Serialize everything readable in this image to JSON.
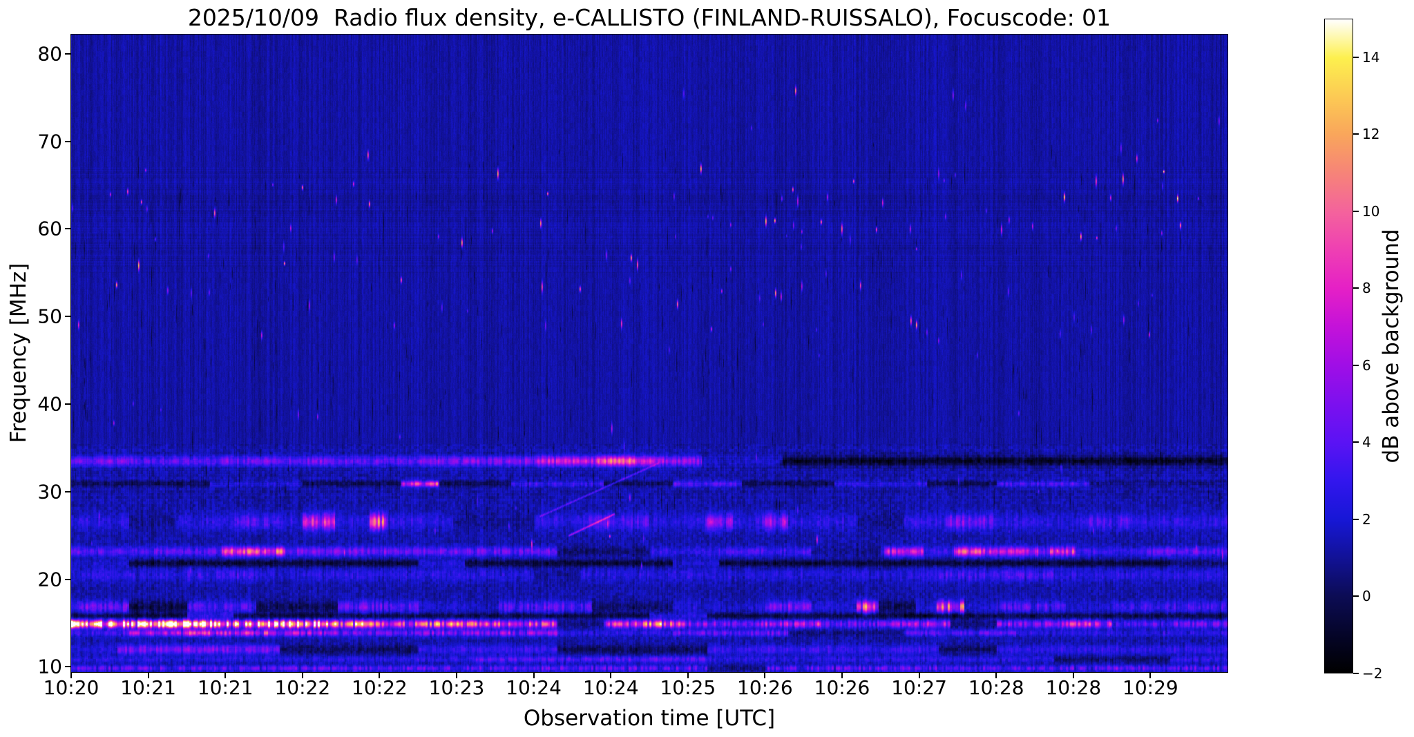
{
  "title": "2025/10/09  Radio flux density, e-CALLISTO (FINLAND-RUISSALO), Focuscode: 01",
  "chart_data": {
    "type": "heatmap",
    "title": "2025/10/09  Radio flux density, e-CALLISTO (FINLAND-RUISSALO), Focuscode: 01",
    "xlabel": "Observation time [UTC]",
    "ylabel": "Frequency [MHz]",
    "x_tick_labels": [
      "10:20",
      "10:21",
      "10:21",
      "10:22",
      "10:22",
      "10:23",
      "10:24",
      "10:24",
      "10:25",
      "10:26",
      "10:26",
      "10:27",
      "10:28",
      "10:28",
      "10:29"
    ],
    "y_tick_values": [
      80,
      70,
      60,
      50,
      40,
      30,
      20,
      10
    ],
    "freq_range_mhz": [
      9.4,
      82.2
    ],
    "grid": false,
    "colorbar": {
      "label": "dB above background",
      "tick_values": [
        -2,
        0,
        2,
        4,
        6,
        8,
        10,
        12,
        14
      ],
      "vmin": -2,
      "vmax": 15
    },
    "colormap_stops": [
      [
        0.0,
        "#000000"
      ],
      [
        0.06,
        "#05052a"
      ],
      [
        0.118,
        "#0c0c55"
      ],
      [
        0.18,
        "#12129b"
      ],
      [
        0.235,
        "#1717d6"
      ],
      [
        0.295,
        "#3316ee"
      ],
      [
        0.353,
        "#5b13f4"
      ],
      [
        0.41,
        "#7b10ef"
      ],
      [
        0.471,
        "#a00ee6"
      ],
      [
        0.53,
        "#c412d9"
      ],
      [
        0.588,
        "#e520c6"
      ],
      [
        0.65,
        "#ef41b2"
      ],
      [
        0.706,
        "#f4639c"
      ],
      [
        0.765,
        "#f68478"
      ],
      [
        0.824,
        "#f9a65b"
      ],
      [
        0.88,
        "#fcc954"
      ],
      [
        0.941,
        "#fdf04e"
      ],
      [
        1.0,
        "#ffffff"
      ]
    ],
    "seed": 20251009,
    "background_db": {
      "mean": 1.1,
      "spread": 0.9
    },
    "texture_zones": [
      {
        "f_min": 55,
        "f_max": 67,
        "row_amp": 0.5
      },
      {
        "f_min": 29,
        "f_max": 35.5,
        "row_amp": 0.45
      }
    ],
    "mottle_below_mhz": 35.5,
    "mottle_amp": 0.95,
    "bands": [
      {
        "f_mhz": 33.55,
        "width_mhz": 0.85,
        "dash": 0.55,
        "base_db": 1.0,
        "segments": [
          [
            0.0,
            0.06,
            3.0
          ],
          [
            0.06,
            0.13,
            2.4
          ],
          [
            0.13,
            0.22,
            3.2
          ],
          [
            0.22,
            0.3,
            2.6
          ],
          [
            0.3,
            0.4,
            3.4
          ],
          [
            0.4,
            0.455,
            5.4
          ],
          [
            0.455,
            0.505,
            7.6
          ],
          [
            0.505,
            0.545,
            4.2
          ],
          [
            0.545,
            0.615,
            0.4
          ],
          [
            0.615,
            1.0,
            -2.3
          ]
        ]
      },
      {
        "f_mhz": 30.95,
        "width_mhz": 0.5,
        "dash": 0.75,
        "base_db": -1.4,
        "segments": [
          [
            0.12,
            0.2,
            0.9
          ],
          [
            0.285,
            0.318,
            6.2
          ],
          [
            0.38,
            0.46,
            1.6
          ],
          [
            0.52,
            0.58,
            2.3
          ],
          [
            0.66,
            0.74,
            1.3
          ],
          [
            0.8,
            0.88,
            1.9
          ],
          [
            0.88,
            1.0,
            -0.6
          ]
        ]
      },
      {
        "f_mhz": 26.6,
        "width_mhz": 1.4,
        "dash": 0.8,
        "base_db": 1.1,
        "segments": [
          [
            0.05,
            0.09,
            -0.4
          ],
          [
            0.14,
            0.18,
            2.2
          ],
          [
            0.2,
            0.228,
            5.6
          ],
          [
            0.258,
            0.274,
            6.6
          ],
          [
            0.33,
            0.4,
            -0.3
          ],
          [
            0.44,
            0.5,
            2.0
          ],
          [
            0.548,
            0.572,
            3.9
          ],
          [
            0.597,
            0.62,
            3.9
          ],
          [
            0.68,
            0.72,
            -0.4
          ],
          [
            0.755,
            0.8,
            2.9
          ],
          [
            0.88,
            0.92,
            2.0
          ]
        ]
      },
      {
        "f_mhz": 23.2,
        "width_mhz": 0.8,
        "dash": 0.6,
        "base_db": 2.4,
        "segments": [
          [
            0.13,
            0.185,
            7.6
          ],
          [
            0.185,
            0.3,
            3.2
          ],
          [
            0.3,
            0.42,
            2.8
          ],
          [
            0.42,
            0.5,
            -0.9
          ],
          [
            0.5,
            0.56,
            1.2
          ],
          [
            0.56,
            0.64,
            2.1
          ],
          [
            0.64,
            0.7,
            -0.4
          ],
          [
            0.703,
            0.737,
            6.0
          ],
          [
            0.737,
            0.763,
            1.5
          ],
          [
            0.763,
            0.788,
            7.0
          ],
          [
            0.788,
            0.836,
            5.0
          ],
          [
            0.846,
            0.868,
            6.2
          ],
          [
            0.868,
            0.93,
            1.6
          ],
          [
            0.93,
            1.0,
            2.6
          ]
        ]
      },
      {
        "f_mhz": 21.9,
        "width_mhz": 0.6,
        "dash": 0.5,
        "base_db": -1.9,
        "segments": [
          [
            0.0,
            0.05,
            0.6
          ],
          [
            0.3,
            0.34,
            0.9
          ],
          [
            0.52,
            0.56,
            0.7
          ],
          [
            0.95,
            1.0,
            -0.8
          ]
        ]
      },
      {
        "f_mhz": 20.5,
        "width_mhz": 1.1,
        "dash": 0.9,
        "base_db": 1.0,
        "segments": [
          [
            0.1,
            0.16,
            1.5
          ],
          [
            0.4,
            0.44,
            -0.3
          ],
          [
            0.75,
            0.85,
            1.7
          ]
        ]
      },
      {
        "f_mhz": 16.9,
        "width_mhz": 1.0,
        "dash": 0.85,
        "base_db": 0.7,
        "segments": [
          [
            0.0,
            0.05,
            2.6
          ],
          [
            0.05,
            0.1,
            -1.6
          ],
          [
            0.1,
            0.16,
            2.1
          ],
          [
            0.16,
            0.23,
            -1.3
          ],
          [
            0.23,
            0.3,
            2.6
          ],
          [
            0.37,
            0.45,
            2.3
          ],
          [
            0.45,
            0.52,
            -1.1
          ],
          [
            0.6,
            0.64,
            3.1
          ],
          [
            0.679,
            0.698,
            7.1
          ],
          [
            0.698,
            0.73,
            -1.3
          ],
          [
            0.748,
            0.772,
            6.6
          ],
          [
            0.8,
            0.86,
            2.1
          ],
          [
            0.9,
            1.0,
            1.6
          ]
        ]
      },
      {
        "f_mhz": 15.9,
        "width_mhz": 0.5,
        "dash": 0.6,
        "base_db": -1.6,
        "segments": [
          [
            0.1,
            0.14,
            1.0
          ],
          [
            0.5,
            0.55,
            0.9
          ],
          [
            0.72,
            0.78,
            -2.2
          ]
        ]
      },
      {
        "f_mhz": 14.9,
        "width_mhz": 0.65,
        "dash": 0.9,
        "base_db": 4.8,
        "segments": [
          [
            0.0,
            0.035,
            13.8
          ],
          [
            0.035,
            0.07,
            11.2
          ],
          [
            0.07,
            0.125,
            13.2
          ],
          [
            0.125,
            0.16,
            9.2
          ],
          [
            0.16,
            0.215,
            11.8
          ],
          [
            0.215,
            0.26,
            8.2
          ],
          [
            0.26,
            0.3,
            6.6
          ],
          [
            0.3,
            0.35,
            7.6
          ],
          [
            0.35,
            0.42,
            6.1
          ],
          [
            0.42,
            0.46,
            -0.6
          ],
          [
            0.46,
            0.487,
            5.2
          ],
          [
            0.487,
            0.53,
            8.2
          ],
          [
            0.53,
            0.6,
            3.1
          ],
          [
            0.6,
            0.65,
            4.6
          ],
          [
            0.65,
            0.7,
            2.6
          ],
          [
            0.7,
            0.76,
            4.1
          ],
          [
            0.76,
            0.8,
            -0.9
          ],
          [
            0.8,
            0.86,
            3.6
          ],
          [
            0.86,
            0.9,
            5.6
          ],
          [
            0.9,
            0.95,
            2.1
          ],
          [
            0.95,
            1.0,
            3.1
          ]
        ]
      },
      {
        "f_mhz": 13.9,
        "width_mhz": 0.55,
        "dash": 0.85,
        "base_db": 1.6,
        "segments": [
          [
            0.05,
            0.1,
            4.1
          ],
          [
            0.1,
            0.17,
            5.6
          ],
          [
            0.17,
            0.23,
            4.1
          ],
          [
            0.23,
            0.3,
            2.6
          ],
          [
            0.3,
            0.42,
            3.6
          ],
          [
            0.42,
            0.52,
            1.1
          ],
          [
            0.52,
            0.62,
            2.6
          ],
          [
            0.62,
            0.72,
            -0.6
          ],
          [
            0.72,
            0.83,
            2.1
          ],
          [
            0.83,
            1.0,
            1.1
          ]
        ]
      },
      {
        "f_mhz": 12.0,
        "width_mhz": 0.8,
        "dash": 0.55,
        "base_db": 0.9,
        "segments": [
          [
            0.04,
            0.18,
            3.3
          ],
          [
            0.18,
            0.3,
            -1.1
          ],
          [
            0.3,
            0.42,
            1.6
          ],
          [
            0.42,
            0.55,
            -1.3
          ],
          [
            0.55,
            0.75,
            1.6
          ],
          [
            0.75,
            0.8,
            -1.1
          ],
          [
            0.8,
            1.0,
            1.3
          ]
        ]
      },
      {
        "f_mhz": 10.9,
        "width_mhz": 0.55,
        "dash": 0.7,
        "base_db": 1.1,
        "segments": [
          [
            0.35,
            0.55,
            2.3
          ],
          [
            0.85,
            0.95,
            -0.9
          ]
        ]
      },
      {
        "f_mhz": 9.9,
        "width_mhz": 0.5,
        "dash": 1.0,
        "base_db": 2.3,
        "segments": [
          [
            0.55,
            0.6,
            -0.6
          ]
        ]
      }
    ],
    "diagonal_streaks": [
      {
        "t0": 0.405,
        "f0": 27.2,
        "t1": 0.508,
        "f1": 33.3,
        "db": 2.4
      },
      {
        "t0": 0.43,
        "f0": 25.0,
        "t1": 0.47,
        "f1": 27.5,
        "db": 1.6
      }
    ],
    "speckle_groups": [
      {
        "f_min": 59,
        "f_max": 67,
        "count": 60,
        "db_min": 3,
        "db_max": 14
      },
      {
        "f_min": 47,
        "f_max": 59,
        "count": 55,
        "db_min": 3,
        "db_max": 12
      },
      {
        "f_min": 67,
        "f_max": 76,
        "count": 10,
        "db_min": 3,
        "db_max": 11
      },
      {
        "f_min": 35,
        "f_max": 47,
        "count": 12,
        "db_min": 2.5,
        "db_max": 6
      },
      {
        "f_min": 20,
        "f_max": 34,
        "count": 25,
        "db_min": 2.5,
        "db_max": 8
      }
    ],
    "dark_streaks": {
      "count": 340,
      "f_min": 28,
      "f_max": 70,
      "db": -1.7
    }
  }
}
